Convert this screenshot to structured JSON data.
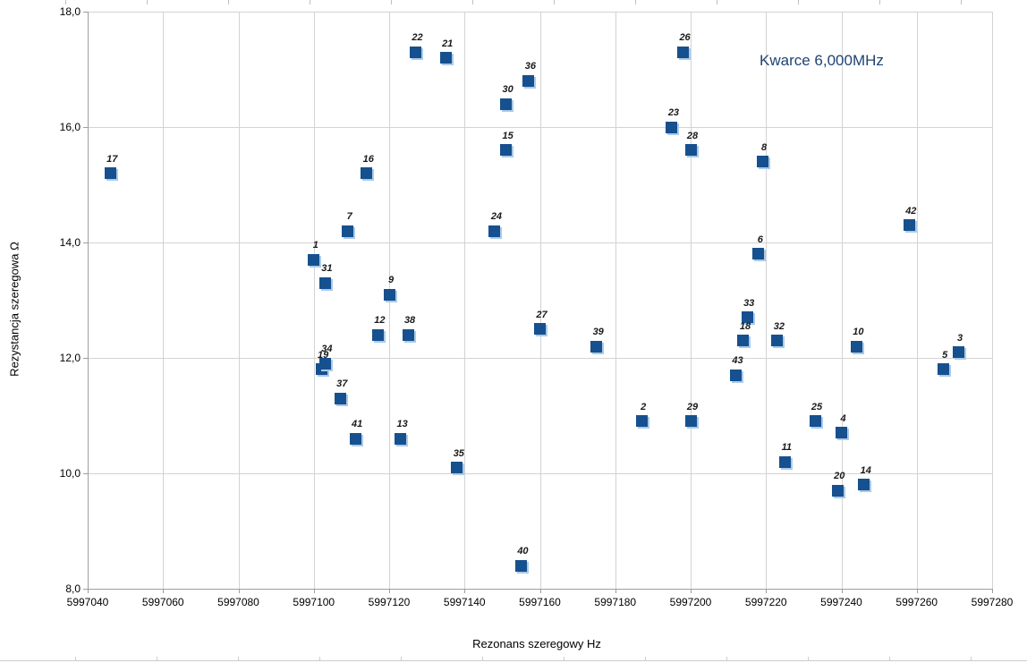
{
  "chart_data": {
    "type": "scatter",
    "title": "Kwarce 6,000MHz",
    "xlabel": "Rezonans szeregowy Hz",
    "ylabel": "Rezystancja szeregowa Ω",
    "xlim": [
      5997040,
      5997280
    ],
    "ylim": [
      8.0,
      18.0
    ],
    "grid": true,
    "legend_position": "none",
    "marker_color": "#17508E",
    "marker_edge_color": "#A9CBEA",
    "x_ticks": [
      5997040,
      5997060,
      5997080,
      5997100,
      5997120,
      5997140,
      5997160,
      5997180,
      5997200,
      5997220,
      5997240,
      5997260,
      5997280
    ],
    "x_tick_labels": [
      "5997040",
      "5997060",
      "5997080",
      "5997100",
      "5997120",
      "5997140",
      "5997160",
      "5997180",
      "5997200",
      "5997220",
      "5997240",
      "5997260",
      "5997280"
    ],
    "y_ticks": [
      8,
      10,
      12,
      14,
      16,
      18
    ],
    "y_tick_labels": [
      "8,0",
      "10,0",
      "12,0",
      "14,0",
      "16,0",
      "18,0"
    ],
    "points": [
      {
        "label": "1",
        "x": 5997100,
        "y": 13.7
      },
      {
        "label": "2",
        "x": 5997187,
        "y": 10.9
      },
      {
        "label": "3",
        "x": 5997271,
        "y": 12.1
      },
      {
        "label": "4",
        "x": 5997240,
        "y": 10.7
      },
      {
        "label": "5",
        "x": 5997267,
        "y": 11.8
      },
      {
        "label": "6",
        "x": 5997218,
        "y": 13.8
      },
      {
        "label": "7",
        "x": 5997109,
        "y": 14.2
      },
      {
        "label": "8",
        "x": 5997219,
        "y": 15.4
      },
      {
        "label": "9",
        "x": 5997120,
        "y": 13.1
      },
      {
        "label": "10",
        "x": 5997244,
        "y": 12.2
      },
      {
        "label": "11",
        "x": 5997225,
        "y": 10.2
      },
      {
        "label": "12",
        "x": 5997117,
        "y": 12.4
      },
      {
        "label": "13",
        "x": 5997123,
        "y": 10.6
      },
      {
        "label": "14",
        "x": 5997246,
        "y": 9.8
      },
      {
        "label": "15",
        "x": 5997151,
        "y": 15.6
      },
      {
        "label": "16",
        "x": 5997114,
        "y": 15.2
      },
      {
        "label": "17",
        "x": 5997046,
        "y": 15.2
      },
      {
        "label": "18",
        "x": 5997214,
        "y": 12.3
      },
      {
        "label": "19",
        "x": 5997102,
        "y": 11.8
      },
      {
        "label": "20",
        "x": 5997239,
        "y": 9.7
      },
      {
        "label": "21",
        "x": 5997135,
        "y": 17.2
      },
      {
        "label": "22",
        "x": 5997127,
        "y": 17.3
      },
      {
        "label": "23",
        "x": 5997195,
        "y": 16.0
      },
      {
        "label": "24",
        "x": 5997148,
        "y": 14.2
      },
      {
        "label": "25",
        "x": 5997233,
        "y": 10.9
      },
      {
        "label": "26",
        "x": 5997198,
        "y": 17.3
      },
      {
        "label": "27",
        "x": 5997160,
        "y": 12.5
      },
      {
        "label": "28",
        "x": 5997200,
        "y": 15.6
      },
      {
        "label": "29",
        "x": 5997200,
        "y": 10.9
      },
      {
        "label": "30",
        "x": 5997151,
        "y": 16.4
      },
      {
        "label": "31",
        "x": 5997103,
        "y": 13.3
      },
      {
        "label": "32",
        "x": 5997223,
        "y": 12.3
      },
      {
        "label": "33",
        "x": 5997215,
        "y": 12.7
      },
      {
        "label": "34",
        "x": 5997103,
        "y": 11.9
      },
      {
        "label": "35",
        "x": 5997138,
        "y": 10.1
      },
      {
        "label": "36",
        "x": 5997157,
        "y": 16.8
      },
      {
        "label": "37",
        "x": 5997107,
        "y": 11.3
      },
      {
        "label": "38",
        "x": 5997125,
        "y": 12.4
      },
      {
        "label": "39",
        "x": 5997175,
        "y": 12.2
      },
      {
        "label": "40",
        "x": 5997155,
        "y": 8.4
      },
      {
        "label": "41",
        "x": 5997111,
        "y": 10.6
      },
      {
        "label": "42",
        "x": 5997258,
        "y": 14.3
      },
      {
        "label": "43",
        "x": 5997212,
        "y": 11.7
      }
    ]
  }
}
